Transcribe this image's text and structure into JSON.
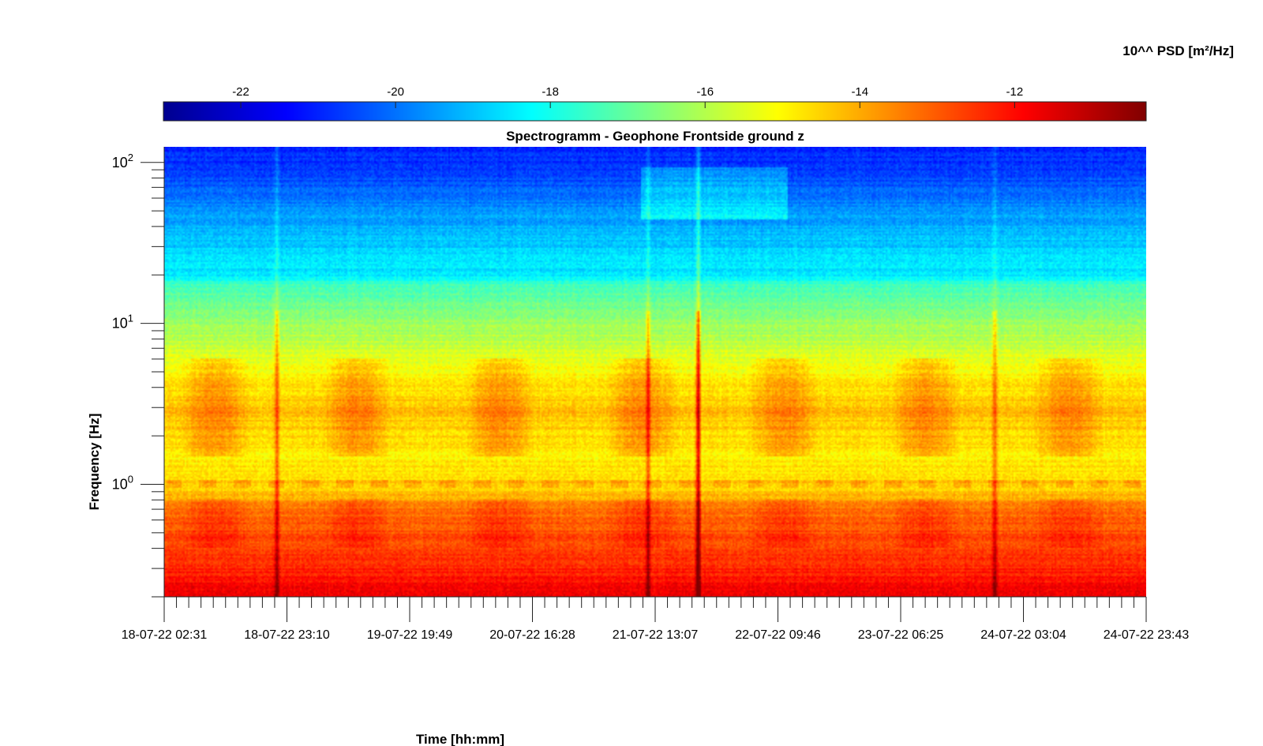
{
  "chart_data": {
    "type": "heatmap",
    "title": "Spectrogramm - Geophone Frontside ground z",
    "xlabel": "Time [hh:mm]",
    "ylabel": "Frequency [Hz]",
    "colorbar": {
      "label": "10^^ PSD [m²/Hz]",
      "ticks": [
        -22,
        -20,
        -18,
        -16,
        -14,
        -12
      ],
      "tick_labels": [
        "-22",
        "-20",
        "-18",
        "-16",
        "-14",
        "-12"
      ],
      "range": [
        -23,
        -10.3
      ],
      "colormap": "jet"
    },
    "x_axis": {
      "ticks": [
        "18-07-22 02:31",
        "18-07-22 23:10",
        "19-07-22 19:49",
        "20-07-22 16:28",
        "21-07-22 13:07",
        "22-07-22 09:46",
        "23-07-22 06:25",
        "24-07-22 03:04",
        "24-07-22 23:43"
      ]
    },
    "y_axis": {
      "scale": "log",
      "range": [
        0.2,
        125
      ],
      "ticks": [
        1,
        10,
        100
      ],
      "tick_labels": [
        {
          "base": "10",
          "exp": "0"
        },
        {
          "base": "10",
          "exp": "1"
        },
        {
          "base": "10",
          "exp": "2"
        }
      ]
    },
    "psd_profile": [
      {
        "f": 0.2,
        "psd": -11.8
      },
      {
        "f": 0.3,
        "psd": -12.3
      },
      {
        "f": 0.5,
        "psd": -12.9
      },
      {
        "f": 0.7,
        "psd": -13.3
      },
      {
        "f": 0.9,
        "psd": -14.5
      },
      {
        "f": 1.5,
        "psd": -14.9
      },
      {
        "f": 3.0,
        "psd": -14.2
      },
      {
        "f": 6.0,
        "psd": -15.4
      },
      {
        "f": 10,
        "psd": -16.3
      },
      {
        "f": 17,
        "psd": -17.3
      },
      {
        "f": 20,
        "psd": -18.4
      },
      {
        "f": 40,
        "psd": -19.2
      },
      {
        "f": 80,
        "psd": -20.5
      },
      {
        "f": 125,
        "psd": -21.0
      }
    ],
    "events": [
      {
        "time": "21-07-22 22:00",
        "psd": -10.5
      },
      {
        "time": "24-07-22 02:00",
        "psd": -12.3
      },
      {
        "time": "21-07-22 09:00",
        "psd": -12.3
      },
      {
        "time": "18-07-22 22:00",
        "psd": -12.8
      }
    ],
    "grid": false
  }
}
